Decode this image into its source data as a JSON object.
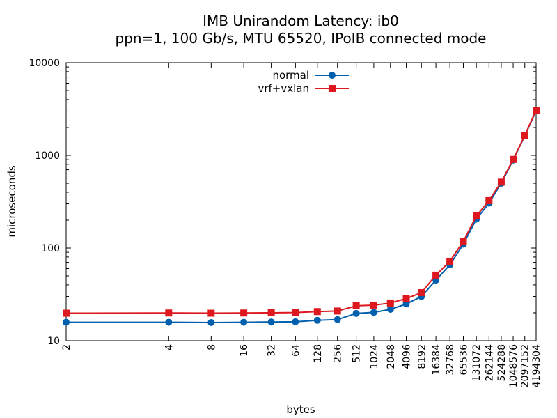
{
  "chart_data": {
    "type": "line",
    "title": "IMB Unirandom Latency: ib0",
    "subtitle": "ppn=1, 100 Gb/s, MTU 65520, IPoIB connected mode",
    "xlabel": "bytes",
    "ylabel": "microseconds",
    "x_scale": "custom",
    "y_scale": "log",
    "ylim": [
      10,
      10000
    ],
    "y_ticks": [
      "10",
      "100",
      "1000",
      "10000"
    ],
    "categories": [
      "2",
      "4",
      "8",
      "16",
      "32",
      "64",
      "128",
      "256",
      "512",
      "1024",
      "2048",
      "4096",
      "8192",
      "16384",
      "32768",
      "65536",
      "131072",
      "262144",
      "524288",
      "1048576",
      "2097152",
      "4194304"
    ],
    "legend_position": "top-center",
    "series": [
      {
        "name": "normal",
        "color": "#0060ad",
        "marker": "circle",
        "values": [
          15.8,
          15.8,
          15.7,
          15.8,
          15.9,
          16.0,
          16.6,
          16.9,
          19.7,
          20.2,
          21.8,
          24.9,
          30.0,
          45.0,
          66.0,
          110,
          205,
          305,
          500,
          890,
          1620,
          3020
        ]
      },
      {
        "name": "vrf+vxlan",
        "color": "#dd181f",
        "marker": "square",
        "values": [
          19.8,
          19.9,
          19.8,
          19.9,
          20.0,
          20.1,
          20.6,
          20.9,
          23.8,
          24.2,
          25.5,
          28.5,
          33.0,
          51.0,
          72.0,
          118,
          222,
          325,
          515,
          905,
          1640,
          3080
        ]
      }
    ]
  }
}
